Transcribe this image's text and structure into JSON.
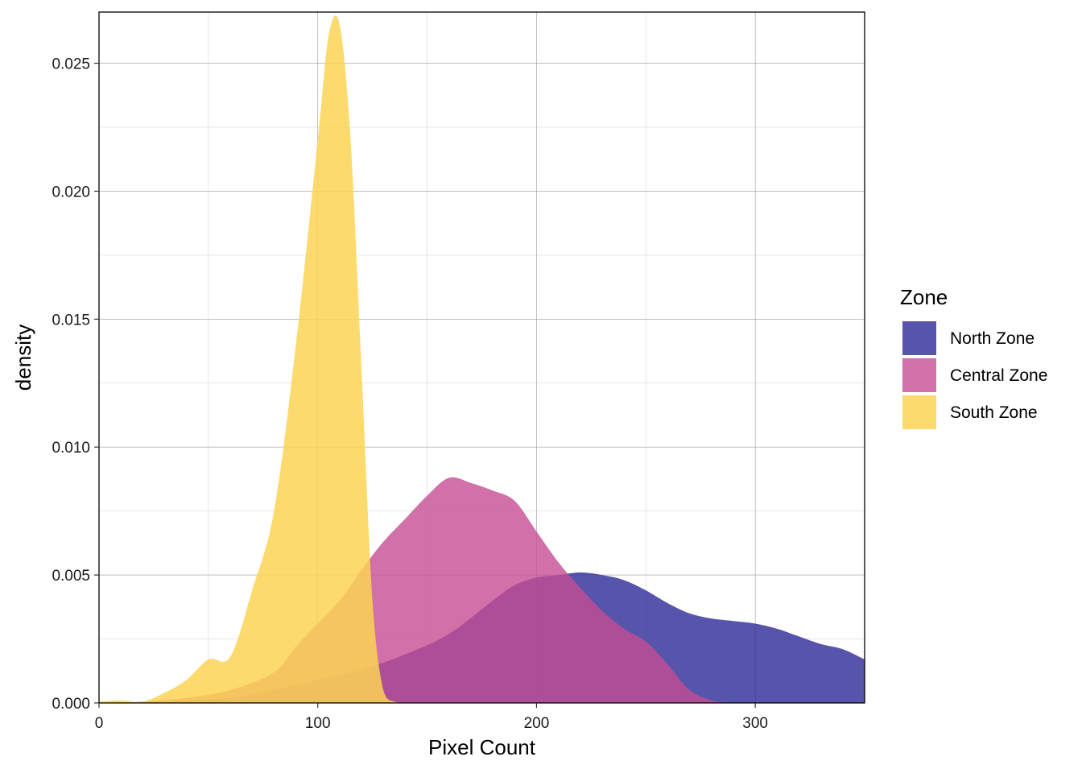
{
  "chart_data": {
    "type": "area",
    "subtype": "density",
    "title": "",
    "xlabel": "Pixel Count",
    "ylabel": "density",
    "xlim": [
      0,
      350
    ],
    "ylim": [
      0,
      0.027
    ],
    "x_ticks": [
      0,
      100,
      200,
      300
    ],
    "x_tick_labels": [
      "0",
      "100",
      "200",
      "300"
    ],
    "y_ticks": [
      0,
      0.005,
      0.01,
      0.015,
      0.02,
      0.025
    ],
    "y_tick_labels": [
      "0.000",
      "0.005",
      "0.010",
      "0.015",
      "0.020",
      "0.025"
    ],
    "grid": true,
    "legend": {
      "title": "Zone",
      "position": "right",
      "entries": [
        "North Zone",
        "Central Zone",
        "South Zone"
      ]
    },
    "series": [
      {
        "name": "North Zone",
        "color": "#2D2A96",
        "opacity": 0.8,
        "points": [
          [
            0,
            0
          ],
          [
            20,
            2e-05
          ],
          [
            40,
            0.0001
          ],
          [
            60,
            0.0002
          ],
          [
            80,
            0.0005
          ],
          [
            100,
            0.0009
          ],
          [
            120,
            0.0013
          ],
          [
            140,
            0.0019
          ],
          [
            160,
            0.0027
          ],
          [
            180,
            0.004
          ],
          [
            190,
            0.0046
          ],
          [
            200,
            0.0049
          ],
          [
            210,
            0.005
          ],
          [
            220,
            0.0051
          ],
          [
            230,
            0.005
          ],
          [
            240,
            0.0048
          ],
          [
            250,
            0.0044
          ],
          [
            260,
            0.0039
          ],
          [
            270,
            0.0035
          ],
          [
            280,
            0.0033
          ],
          [
            290,
            0.0032
          ],
          [
            300,
            0.0031
          ],
          [
            310,
            0.0029
          ],
          [
            320,
            0.0026
          ],
          [
            330,
            0.0023
          ],
          [
            340,
            0.0021
          ],
          [
            350,
            0.0017
          ]
        ]
      },
      {
        "name": "Central Zone",
        "color": "#C64C93",
        "opacity": 0.8,
        "points": [
          [
            0,
            0
          ],
          [
            20,
            5e-05
          ],
          [
            40,
            0.0002
          ],
          [
            60,
            0.0005
          ],
          [
            80,
            0.0012
          ],
          [
            90,
            0.0022
          ],
          [
            100,
            0.0031
          ],
          [
            110,
            0.004
          ],
          [
            120,
            0.0052
          ],
          [
            130,
            0.0063
          ],
          [
            140,
            0.0072
          ],
          [
            150,
            0.0081
          ],
          [
            160,
            0.0088
          ],
          [
            170,
            0.0086
          ],
          [
            180,
            0.0083
          ],
          [
            190,
            0.0079
          ],
          [
            200,
            0.0067
          ],
          [
            210,
            0.0055
          ],
          [
            220,
            0.0045
          ],
          [
            230,
            0.0036
          ],
          [
            240,
            0.0029
          ],
          [
            250,
            0.0024
          ],
          [
            260,
            0.0015
          ],
          [
            270,
            0.0005
          ],
          [
            280,
            0.0001
          ],
          [
            290,
            0
          ]
        ]
      },
      {
        "name": "South Zone",
        "color": "#FCD453",
        "opacity": 0.85,
        "points": [
          [
            0,
            5e-05
          ],
          [
            10,
            0.0001
          ],
          [
            20,
            5e-05
          ],
          [
            30,
            0.0004
          ],
          [
            40,
            0.0009
          ],
          [
            50,
            0.0017
          ],
          [
            60,
            0.0018
          ],
          [
            70,
            0.0044
          ],
          [
            80,
            0.0075
          ],
          [
            90,
            0.014
          ],
          [
            100,
            0.022
          ],
          [
            105,
            0.0261
          ],
          [
            110,
            0.0265
          ],
          [
            115,
            0.022
          ],
          [
            120,
            0.013
          ],
          [
            125,
            0.004
          ],
          [
            130,
            0.0005
          ],
          [
            135,
            5e-05
          ],
          [
            140,
            0
          ]
        ]
      }
    ]
  }
}
